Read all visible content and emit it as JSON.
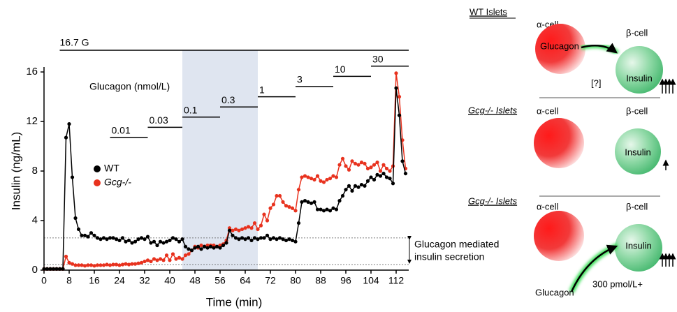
{
  "chart_data": {
    "type": "line",
    "xlabel": "Time (min)",
    "ylabel": "Insulin (ng/mL)",
    "x": [
      0,
      1,
      2,
      3,
      4,
      5,
      6,
      7,
      8,
      9,
      10,
      11,
      12,
      13,
      14,
      15,
      16,
      17,
      18,
      19,
      20,
      21,
      22,
      23,
      24,
      25,
      26,
      27,
      28,
      29,
      30,
      31,
      32,
      33,
      34,
      35,
      36,
      37,
      38,
      39,
      40,
      41,
      42,
      43,
      44,
      45,
      46,
      47,
      48,
      49,
      50,
      51,
      52,
      53,
      54,
      55,
      56,
      57,
      58,
      59,
      60,
      61,
      62,
      63,
      64,
      65,
      66,
      67,
      68,
      69,
      70,
      71,
      72,
      73,
      74,
      75,
      76,
      77,
      78,
      79,
      80,
      81,
      82,
      83,
      84,
      85,
      86,
      87,
      88,
      89,
      90,
      91,
      92,
      93,
      94,
      95,
      96,
      97,
      98,
      99,
      100,
      101,
      102,
      103,
      104,
      105,
      106,
      107,
      108,
      109,
      110,
      111,
      112,
      113,
      114,
      115
    ],
    "series": [
      {
        "name": "Gcg-/-",
        "color": "#e8321e",
        "values": [
          0.1,
          0.1,
          0.1,
          0.1,
          0.1,
          0.1,
          0.1,
          1.1,
          0.6,
          0.5,
          0.4,
          0.4,
          0.4,
          0.35,
          0.4,
          0.4,
          0.35,
          0.4,
          0.4,
          0.4,
          0.45,
          0.4,
          0.45,
          0.45,
          0.4,
          0.45,
          0.5,
          0.45,
          0.5,
          0.5,
          0.55,
          0.6,
          0.7,
          0.8,
          0.7,
          0.9,
          0.8,
          0.9,
          0.8,
          1.2,
          0.8,
          1.3,
          0.9,
          1.0,
          0.9,
          1.2,
          1.3,
          1.6,
          1.9,
          1.8,
          2.0,
          1.9,
          2.0,
          2.0,
          2.0,
          1.9,
          2.0,
          2.1,
          2.4,
          3.4,
          3.2,
          3.3,
          3.2,
          3.3,
          3.4,
          3.5,
          3.4,
          3.8,
          3.3,
          3.6,
          4.5,
          4.0,
          5.0,
          5.3,
          6.0,
          6.0,
          5.5,
          5.2,
          5.1,
          5.0,
          4.8,
          6.5,
          7.5,
          7.6,
          7.5,
          7.4,
          7.3,
          7.6,
          7.2,
          7.1,
          7.3,
          7.4,
          7.6,
          7.5,
          8.5,
          9.0,
          8.4,
          8.1,
          8.8,
          8.6,
          8.5,
          8.7,
          8.6,
          8.2,
          8.3,
          8.5,
          8.7,
          8.0,
          8.5,
          8.2,
          8.0,
          8.4,
          15.9,
          14.0,
          10.5,
          8.2
        ]
      },
      {
        "name": "WT",
        "color": "#000000",
        "values": [
          0.1,
          0.1,
          0.1,
          0.1,
          0.1,
          0.1,
          0.1,
          10.7,
          11.8,
          7.5,
          4.2,
          3.3,
          2.8,
          2.8,
          2.7,
          3.0,
          2.8,
          2.6,
          2.5,
          2.6,
          2.5,
          2.6,
          2.6,
          2.5,
          2.4,
          2.6,
          2.3,
          2.4,
          2.2,
          2.3,
          2.5,
          2.6,
          2.5,
          2.7,
          2.2,
          2.3,
          2.0,
          2.3,
          2.2,
          2.3,
          2.4,
          2.6,
          2.5,
          2.3,
          2.5,
          1.9,
          1.7,
          1.6,
          1.8,
          1.9,
          1.7,
          1.9,
          1.8,
          1.9,
          1.8,
          1.9,
          1.8,
          2.0,
          2.2,
          3.2,
          2.8,
          2.6,
          2.5,
          2.6,
          2.5,
          2.6,
          2.4,
          2.6,
          2.5,
          2.6,
          2.6,
          2.8,
          2.5,
          2.6,
          2.5,
          2.6,
          2.5,
          2.4,
          2.5,
          2.4,
          2.3,
          3.8,
          5.5,
          5.6,
          5.5,
          5.4,
          5.5,
          4.9,
          4.9,
          4.8,
          4.9,
          4.8,
          5.0,
          4.9,
          5.6,
          6.0,
          6.5,
          6.8,
          6.4,
          6.8,
          6.7,
          6.9,
          6.8,
          7.2,
          7.5,
          7.3,
          7.7,
          7.6,
          7.8,
          7.5,
          7.4,
          7.0,
          14.7,
          12.5,
          8.8,
          7.8
        ]
      }
    ],
    "xlim": [
      0,
      116
    ],
    "ylim": [
      0,
      16.4
    ],
    "xticks": [
      0,
      8,
      16,
      24,
      32,
      40,
      48,
      56,
      64,
      72,
      80,
      88,
      96,
      104,
      112
    ],
    "yticks": [
      0,
      4,
      8,
      12,
      16
    ],
    "glucose": {
      "label": "16.7 G",
      "start": 5,
      "end": 116
    },
    "glucagon_title": "Glucagon (nmol/L)",
    "glucagon_steps": [
      {
        "label": "0.01",
        "start": 21,
        "end": 33
      },
      {
        "label": "0.03",
        "start": 33,
        "end": 44
      },
      {
        "label": "0.1",
        "start": 44,
        "end": 56
      },
      {
        "label": "0.3",
        "start": 56,
        "end": 68
      },
      {
        "label": "1",
        "start": 68,
        "end": 80
      },
      {
        "label": "3",
        "start": 80,
        "end": 92
      },
      {
        "label": "10",
        "start": 92,
        "end": 104
      },
      {
        "label": "30",
        "start": 104,
        "end": 116
      }
    ],
    "shade": [
      44,
      68
    ],
    "reference_lines": [
      2.6,
      0.45
    ],
    "reference_label": [
      "Glucagon mediated",
      "insulin secretion"
    ]
  },
  "diagram": {
    "panels": [
      {
        "title": "WT Islets",
        "alpha": "α-cell",
        "beta": "β-cell",
        "alpha_text": "Glucagon",
        "beta_text": "Insulin",
        "arrow_text": "[?]"
      },
      {
        "title": "Gcg-/- Islets",
        "alpha": "α-cell",
        "beta": "β-cell",
        "beta_text": "Insulin"
      },
      {
        "title": "Gcg-/- Islets",
        "alpha": "α-cell",
        "beta": "β-cell",
        "beta_text": "Insulin",
        "source_text": "Glucagon",
        "arrow_text": "300 pmol/L+"
      }
    ]
  }
}
